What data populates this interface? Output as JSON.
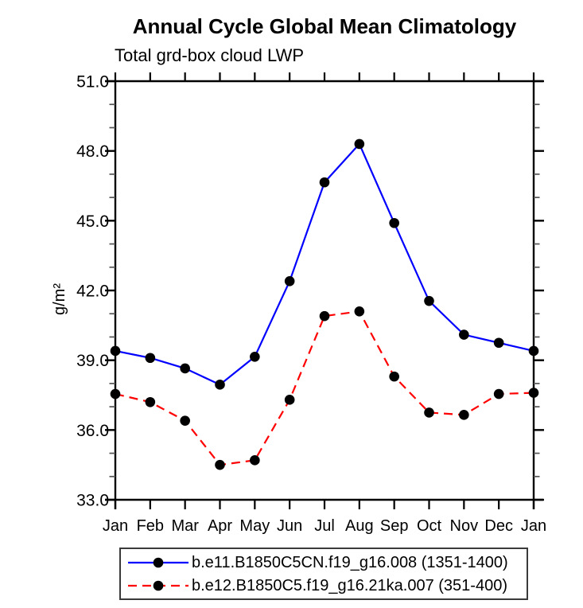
{
  "title": "Annual Cycle Global Mean Climatology",
  "subtitle": "Total grd-box cloud LWP",
  "chart_data": {
    "type": "line",
    "title": "Annual Cycle Global Mean Climatology",
    "subtitle": "Total grd-box cloud LWP",
    "ylabel": "g/m²",
    "xlabel": "",
    "categories": [
      "Jan",
      "Feb",
      "Mar",
      "Apr",
      "May",
      "Jun",
      "Jul",
      "Aug",
      "Sep",
      "Oct",
      "Nov",
      "Dec",
      "Jan"
    ],
    "series": [
      {
        "name": "b.e11.B1850C5CN.f19_g16.008 (1351-1400)",
        "color": "#0000ff",
        "line_style": "solid",
        "marker": "filled-circle",
        "marker_color": "#000000",
        "values": [
          39.4,
          39.1,
          38.65,
          37.95,
          39.15,
          42.4,
          46.65,
          48.3,
          44.9,
          41.55,
          40.1,
          39.75,
          39.4
        ]
      },
      {
        "name": "b.e12.B1850C5.f19_g16.21ka.007 (351-400)",
        "color": "#ff0000",
        "line_style": "dashed",
        "marker": "filled-circle",
        "marker_color": "#000000",
        "values": [
          37.55,
          37.2,
          36.4,
          34.5,
          34.7,
          37.3,
          40.9,
          41.1,
          38.3,
          36.75,
          36.65,
          37.55,
          37.6
        ]
      }
    ],
    "ylim": [
      33.0,
      51.0
    ],
    "yticks_major": [
      33.0,
      36.0,
      39.0,
      42.0,
      45.0,
      48.0,
      51.0
    ],
    "ytick_label_format": "one-decimal",
    "y_minor_interval": 1.0,
    "grid": false,
    "legend_position": "bottom",
    "frame": "box-with-outward-ticks"
  },
  "colors": {
    "series1": "#0000ff",
    "series2": "#ff0000",
    "marker": "#000000",
    "axis": "#000000",
    "minor_tick": "#555555",
    "legend_border": "#3a3a3a",
    "background": "#ffffff"
  }
}
